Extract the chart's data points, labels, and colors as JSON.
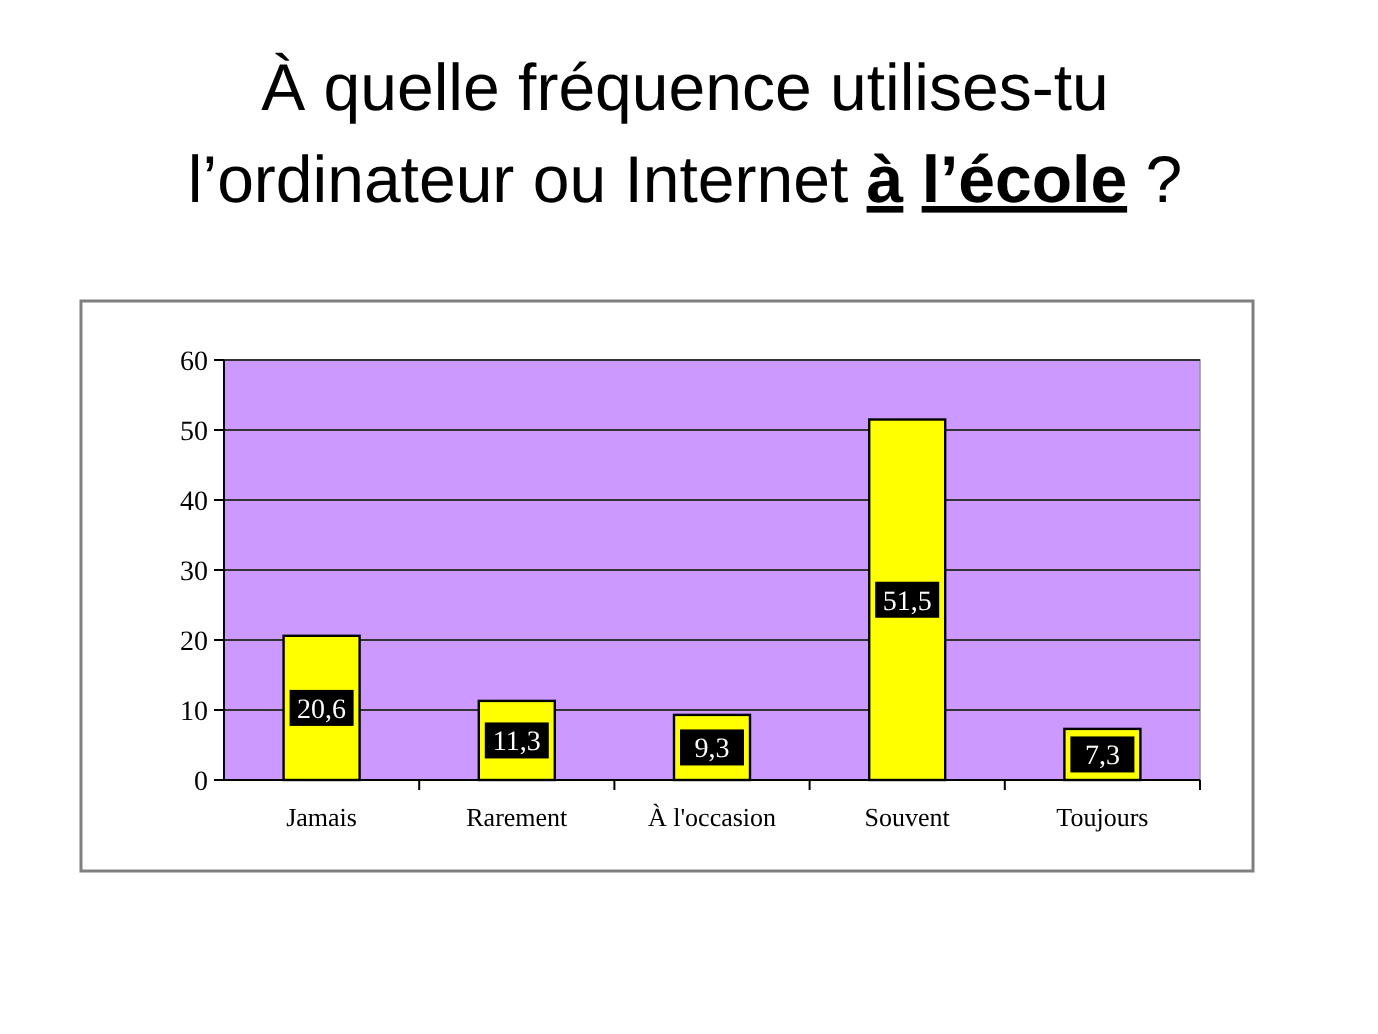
{
  "chart_data": {
    "type": "bar",
    "title": "À quelle fréquence utilises-tu\nl’ordinateur ou Internet à l’école ?",
    "categories": [
      "Jamais",
      "Rarement",
      "À l'occasion",
      "Souvent",
      "Toujours"
    ],
    "values": [
      20.6,
      11.3,
      9.3,
      51.5,
      7.3
    ],
    "value_labels": [
      "20,6",
      "11,3",
      "9,3",
      "51,5",
      "7,3"
    ],
    "color": "#ffff00",
    "ylim": [
      0,
      60
    ],
    "yticks": [
      0,
      10,
      20,
      30,
      40,
      50,
      60
    ],
    "grid": "y"
  }
}
